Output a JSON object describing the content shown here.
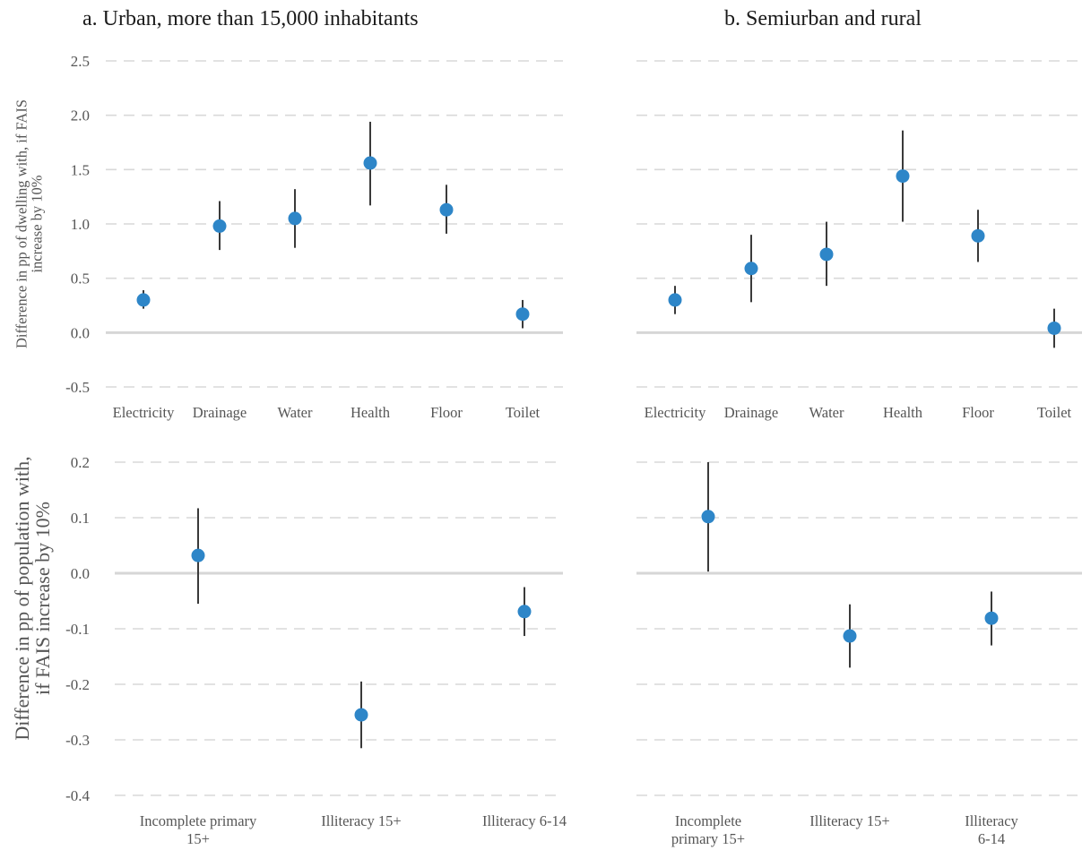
{
  "chart_data": [
    {
      "type": "scatter",
      "title": "a. Urban, more than 15,000 inhabitants",
      "ylabel": "Difference in pp of dwelling with, if FAIS increase by 10%",
      "categories": [
        "Electricity",
        "Drainage",
        "Water",
        "Health",
        "Floor",
        "Toilet"
      ],
      "values": [
        0.3,
        0.98,
        1.05,
        1.56,
        1.13,
        0.17
      ],
      "ci_low": [
        0.22,
        0.76,
        0.78,
        1.17,
        0.91,
        0.04
      ],
      "ci_high": [
        0.39,
        1.21,
        1.32,
        1.94,
        1.36,
        0.3
      ],
      "ylim": [
        -0.5,
        2.5
      ],
      "yticks": [
        "-0.5",
        "0.0",
        "0.5",
        "1.0",
        "1.5",
        "2.0",
        "2.5"
      ],
      "grid": true
    },
    {
      "type": "scatter",
      "title": "b. Semiurban and rural",
      "categories": [
        "Electricity",
        "Drainage",
        "Water",
        "Health",
        "Floor",
        "Toilet"
      ],
      "values": [
        0.3,
        0.59,
        0.72,
        1.44,
        0.89,
        0.04
      ],
      "ci_low": [
        0.17,
        0.28,
        0.43,
        1.02,
        0.65,
        -0.14
      ],
      "ci_high": [
        0.43,
        0.9,
        1.02,
        1.86,
        1.13,
        0.22
      ],
      "ylim": [
        -0.5,
        2.5
      ],
      "grid": true
    },
    {
      "type": "scatter",
      "ylabel": "Difference in pp of population with, if FAIS increase by 10%",
      "categories": [
        "Incomplete primary 15+",
        "Illiteracy 15+",
        "Illiteracy 6-14"
      ],
      "values": [
        0.032,
        -0.255,
        -0.069
      ],
      "ci_low": [
        -0.055,
        -0.315,
        -0.113
      ],
      "ci_high": [
        0.117,
        -0.195,
        -0.025
      ],
      "ylim": [
        -0.4,
        0.2
      ],
      "yticks": [
        "-0.4",
        "-0.3",
        "-0.2",
        "-0.1",
        "0.0",
        "0.1",
        "0.2"
      ],
      "grid": true
    },
    {
      "type": "scatter",
      "categories": [
        "Incomplete primary 15+",
        "Illiteracy 15+",
        "Illiteracy 6-14"
      ],
      "values": [
        0.102,
        -0.113,
        -0.081
      ],
      "ci_low": [
        0.003,
        -0.17,
        -0.13
      ],
      "ci_high": [
        0.2,
        -0.056,
        -0.033
      ],
      "ylim": [
        -0.4,
        0.2
      ],
      "grid": true
    }
  ],
  "colors": {
    "point": "#2e86c8",
    "errorbar": "#3a3a3a",
    "grid": "#d9d9d9",
    "zero_line": "#d6d6d6",
    "text": "#555555"
  }
}
